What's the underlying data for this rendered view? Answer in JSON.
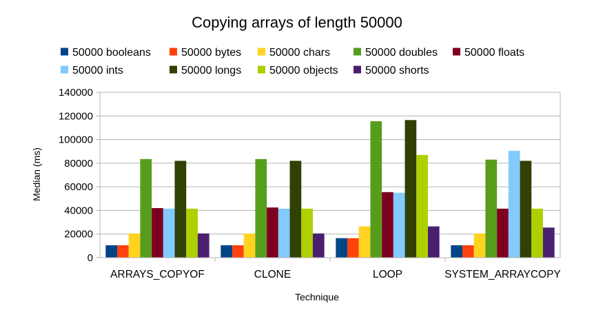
{
  "chart_data": {
    "type": "bar",
    "title": "Copying arrays of length 50000",
    "xlabel": "Technique",
    "ylabel": "Median (ms)",
    "ylim": [
      0,
      140000
    ],
    "yticks": [
      "0",
      "20000",
      "40000",
      "60000",
      "80000",
      "100000",
      "120000",
      "140000"
    ],
    "grid": "horizontal",
    "legend_position": "top",
    "categories": [
      "ARRAYS_COPYOF",
      "CLONE",
      "LOOP",
      "SYSTEM_ARRAYCOPY"
    ],
    "series": [
      {
        "name": "50000 booleans",
        "color": "#004586",
        "values": [
          10500,
          10500,
          16500,
          10500
        ]
      },
      {
        "name": "50000 bytes",
        "color": "#ff420e",
        "values": [
          10500,
          10500,
          16500,
          10500
        ]
      },
      {
        "name": "50000 chars",
        "color": "#ffd320",
        "values": [
          20500,
          20500,
          26500,
          20500
        ]
      },
      {
        "name": "50000 doubles",
        "color": "#579d1c",
        "values": [
          83500,
          83500,
          115500,
          83000
        ]
      },
      {
        "name": "50000 floats",
        "color": "#7e0021",
        "values": [
          42000,
          42500,
          55500,
          41500
        ]
      },
      {
        "name": "50000 ints",
        "color": "#83caff",
        "values": [
          41500,
          41500,
          55000,
          90500
        ]
      },
      {
        "name": "50000 longs",
        "color": "#314004",
        "values": [
          82000,
          82000,
          116500,
          82000
        ]
      },
      {
        "name": "50000 objects",
        "color": "#aecf00",
        "values": [
          41500,
          41500,
          87000,
          41500
        ]
      },
      {
        "name": "50000 shorts",
        "color": "#4b1f6f",
        "values": [
          20500,
          20500,
          26500,
          25500
        ]
      }
    ]
  }
}
